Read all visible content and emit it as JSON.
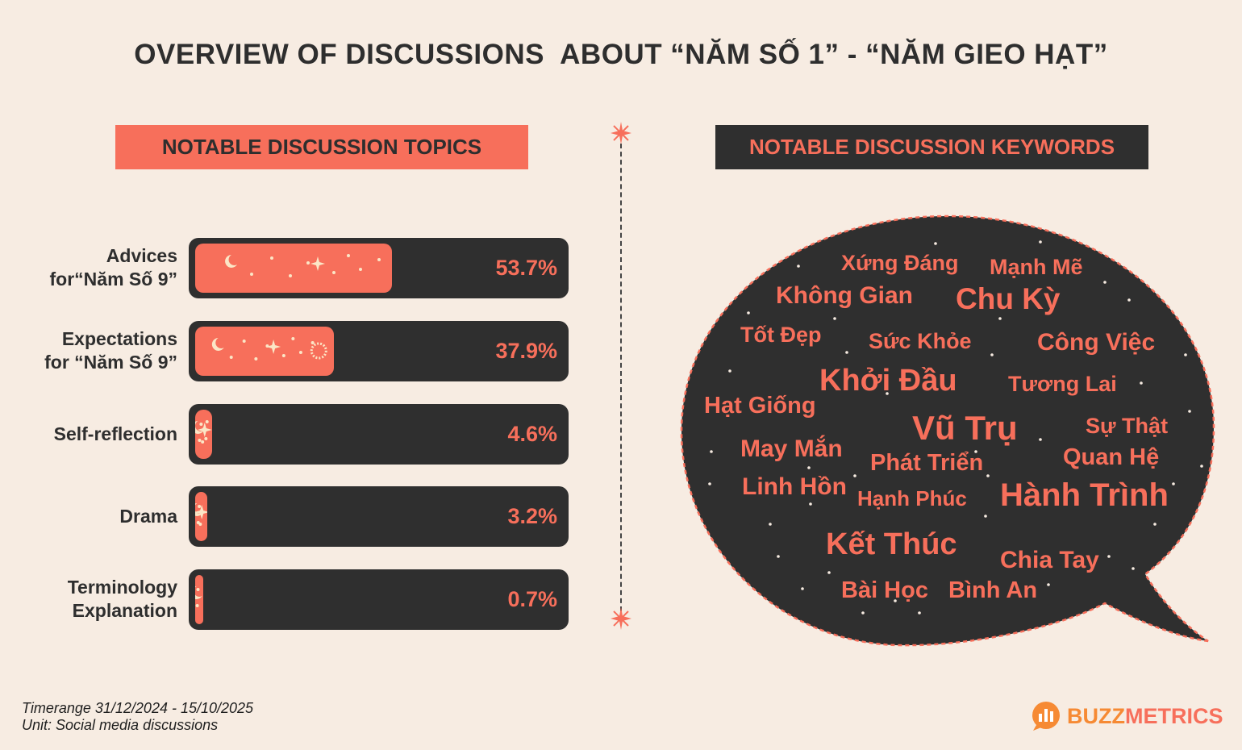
{
  "title": "OVERVIEW OF DISCUSSIONS  ABOUT “NĂM SỐ 1” - “NĂM GIEO HẠT”",
  "left_header": "NOTABLE DISCUSSION TOPICS",
  "right_header": "NOTABLE DISCUSSION KEYWORDS",
  "chart_data": {
    "type": "bar",
    "orientation": "horizontal",
    "unit": "%",
    "xlim": [
      0,
      100
    ],
    "categories": [
      "Advices\nfor“Năm Số 9”",
      "Expectations\nfor “Năm Số 9”",
      "Self-reflection",
      "Drama",
      "Terminology\nExplanation"
    ],
    "values": [
      53.7,
      37.9,
      4.6,
      3.2,
      0.7
    ],
    "value_labels": [
      "53.7%",
      "37.9%",
      "4.6%",
      "3.2%",
      "0.7%"
    ]
  },
  "keywords": [
    "Xứng Đáng",
    "Mạnh Mẽ",
    "Không Gian",
    "Chu Kỳ",
    "Tốt Đẹp",
    "Sức Khỏe",
    "Công Việc",
    "Khởi Đầu",
    "Tương Lai",
    "Hạt Giống",
    "Vũ Trụ",
    "Sự Thật",
    "May Mắn",
    "Phát Triển",
    "Quan Hệ",
    "Linh Hồn",
    "Hạnh Phúc",
    "Hành Trình",
    "Kết Thúc",
    "Chia Tay",
    "Bài Học",
    "Bình An"
  ],
  "footer": {
    "timerange": "Timerange 31/12/2024 - 15/10/2025",
    "unit": "Unit: Social media discussions"
  },
  "brand": {
    "part1": "BUZZ",
    "part2": "METRICS"
  },
  "colors": {
    "background": "#f7ece2",
    "accent": "#f76f5b",
    "dark": "#2f2f2f",
    "brand_orange": "#f68a34"
  }
}
